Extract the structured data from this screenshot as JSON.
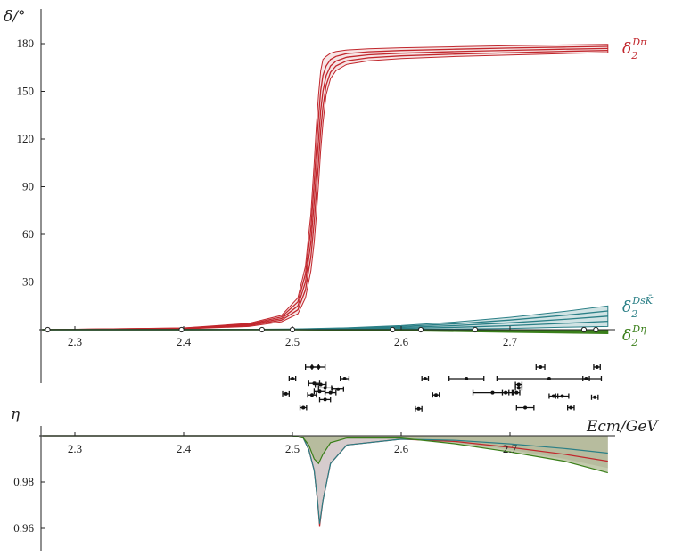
{
  "chart_data": [
    {
      "type": "line",
      "panel": "phase shifts",
      "ylabel": "δ/°",
      "xlim": [
        2.27,
        2.79
      ],
      "ylim": [
        0,
        190
      ],
      "x_ticks": [
        "2.3",
        "2.4",
        "2.5",
        "2.6",
        "2.7"
      ],
      "y_ticks": [
        "30",
        "60",
        "90",
        "120",
        "150",
        "180"
      ],
      "colors": {
        "Dpi": "#c1272d",
        "DsK": "#2a7f86",
        "Deta": "#3a7f1a"
      },
      "series": [
        {
          "name": "δ2Dπ",
          "label": {
            "base": "δ",
            "sub": "2",
            "sup": "Dπ"
          },
          "band": true,
          "x": [
            2.27,
            2.4,
            2.46,
            2.49,
            2.505,
            2.512,
            2.517,
            2.52,
            2.522,
            2.524,
            2.526,
            2.528,
            2.531,
            2.535,
            2.54,
            2.55,
            2.57,
            2.6,
            2.65,
            2.7,
            2.75,
            2.79
          ],
          "values": [
            0,
            0.8,
            3,
            7,
            15,
            30,
            55,
            80,
            100,
            120,
            138,
            150,
            160,
            166,
            169,
            171.5,
            173,
            174,
            175,
            175.8,
            176.5,
            177
          ],
          "band_halfwidth": [
            0,
            0.3,
            1,
            2,
            5,
            10,
            18,
            25,
            28,
            28,
            25,
            20,
            12,
            8,
            6,
            4.5,
            3.8,
            3.4,
            3.1,
            2.9,
            2.7,
            2.6
          ]
        },
        {
          "name": "δ2DsK̄",
          "label": {
            "base": "δ",
            "sub": "2",
            "sup": "DsK̄"
          },
          "band": true,
          "x": [
            2.27,
            2.4,
            2.5,
            2.55,
            2.6,
            2.65,
            2.7,
            2.75,
            2.79
          ],
          "values": [
            0,
            0,
            0.2,
            0.6,
            1.4,
            2.6,
            4.3,
            6.5,
            8.5
          ],
          "band_halfwidth": [
            0,
            0,
            0.2,
            0.6,
            1.2,
            2.2,
            3.5,
            5,
            6.5
          ]
        },
        {
          "name": "δ2Dη",
          "label": {
            "base": "δ",
            "sub": "2",
            "sup": "Dη"
          },
          "band": true,
          "x": [
            2.27,
            2.4,
            2.5,
            2.6,
            2.7,
            2.79
          ],
          "values": [
            0,
            0,
            0,
            -0.3,
            -0.9,
            -1.4
          ],
          "band_halfwidth": [
            0,
            0,
            0,
            0.4,
            0.8,
            1.1
          ]
        }
      ],
      "open_points_x": [
        2.275,
        2.398,
        2.472,
        2.5,
        2.592,
        2.618,
        2.668,
        2.768,
        2.779
      ]
    },
    {
      "type": "scatter",
      "panel": "energy levels with horizontal error bars",
      "x": [
        2.518,
        2.524,
        2.548,
        2.5,
        2.52,
        2.526,
        2.53,
        2.542,
        2.494,
        2.518,
        2.525,
        2.535,
        2.53,
        2.51,
        2.622,
        2.66,
        2.728,
        2.736,
        2.78,
        2.632,
        2.708,
        2.708,
        2.77,
        2.616,
        2.684,
        2.696,
        2.74,
        2.748,
        2.706,
        2.778,
        2.714,
        2.756
      ],
      "xerr": [
        0.006,
        0.006,
        0.004,
        0.003,
        0.005,
        0.005,
        0.006,
        0.005,
        0.003,
        0.004,
        0.005,
        0.005,
        0.005,
        0.003,
        0.003,
        0.016,
        0.004,
        0.048,
        0.003,
        0.003,
        0.003,
        0.003,
        0.003,
        0.003,
        0.018,
        0.003,
        0.004,
        0.006,
        0.003,
        0.003,
        0.008,
        0.003
      ],
      "row": [
        0,
        0,
        1,
        1,
        1.4,
        1.5,
        1.8,
        1.9,
        2.3,
        2.4,
        2.1,
        2.2,
        2.8,
        3.5,
        1,
        1,
        0,
        1,
        0,
        2.4,
        1.5,
        1.8,
        1,
        3.6,
        2.2,
        2.2,
        2.5,
        2.5,
        2.2,
        2.6,
        3.5,
        3.5
      ]
    },
    {
      "type": "area",
      "panel": "inelasticity",
      "ylabel": "η",
      "xlabel": "Ecm/GeV",
      "xlim": [
        2.27,
        2.79
      ],
      "ylim": [
        0.952,
        1.0
      ],
      "x_ticks": [
        "2.3",
        "2.4",
        "2.5",
        "2.6",
        "2.7"
      ],
      "y_ticks": [
        "0.96",
        "0.98"
      ],
      "series": [
        {
          "name": "grey band",
          "x": [
            2.27,
            2.5,
            2.51,
            2.515,
            2.52,
            2.523,
            2.525,
            2.528,
            2.535,
            2.55,
            2.6,
            2.65,
            2.7,
            2.75,
            2.79
          ],
          "lower": [
            1.0,
            1.0,
            0.999,
            0.994,
            0.985,
            0.972,
            0.962,
            0.972,
            0.988,
            0.996,
            0.9985,
            0.997,
            0.994,
            0.99,
            0.986
          ],
          "upper": [
            1.0,
            1.0,
            1.0,
            1.0,
            1.0,
            1.0,
            1.0,
            1.0,
            1.0,
            1.0,
            1.0,
            1.0,
            1.0,
            1.0,
            1.0
          ]
        },
        {
          "name": "green band",
          "x": [
            2.27,
            2.5,
            2.51,
            2.515,
            2.52,
            2.524,
            2.528,
            2.535,
            2.55,
            2.6,
            2.65,
            2.7,
            2.75,
            2.79
          ],
          "lower": [
            1.0,
            1.0,
            0.999,
            0.996,
            0.99,
            0.988,
            0.992,
            0.997,
            0.999,
            0.999,
            0.9965,
            0.993,
            0.989,
            0.984
          ],
          "upper": [
            1.0,
            1.0,
            1.0,
            1.0,
            1.0,
            1.0,
            1.0,
            1.0,
            1.0,
            1.0,
            1.0,
            1.0,
            1.0,
            1.0
          ]
        }
      ],
      "lines": [
        {
          "color": "#c1272d",
          "x": [
            2.27,
            2.5,
            2.51,
            2.515,
            2.52,
            2.523,
            2.525,
            2.528,
            2.535,
            2.55,
            2.6,
            2.65,
            2.7,
            2.75,
            2.79
          ],
          "values": [
            1.0,
            1.0,
            0.999,
            0.994,
            0.985,
            0.972,
            0.961,
            0.972,
            0.988,
            0.996,
            0.9985,
            0.9975,
            0.995,
            0.992,
            0.989
          ]
        },
        {
          "color": "#2a7f86",
          "x": [
            2.27,
            2.5,
            2.51,
            2.515,
            2.52,
            2.523,
            2.525,
            2.528,
            2.535,
            2.55,
            2.6,
            2.65,
            2.7,
            2.75,
            2.79
          ],
          "values": [
            1.0,
            1.0,
            0.999,
            0.994,
            0.985,
            0.972,
            0.962,
            0.972,
            0.988,
            0.996,
            0.9985,
            0.998,
            0.9965,
            0.9945,
            0.9925
          ]
        },
        {
          "color": "#3a7f1a",
          "x": [
            2.27,
            2.5,
            2.51,
            2.515,
            2.52,
            2.524,
            2.528,
            2.535,
            2.55,
            2.6,
            2.65,
            2.7,
            2.75,
            2.79
          ],
          "values": [
            1.0,
            1.0,
            0.999,
            0.996,
            0.99,
            0.988,
            0.992,
            0.997,
            0.999,
            0.999,
            0.9965,
            0.993,
            0.989,
            0.984
          ]
        }
      ]
    }
  ]
}
